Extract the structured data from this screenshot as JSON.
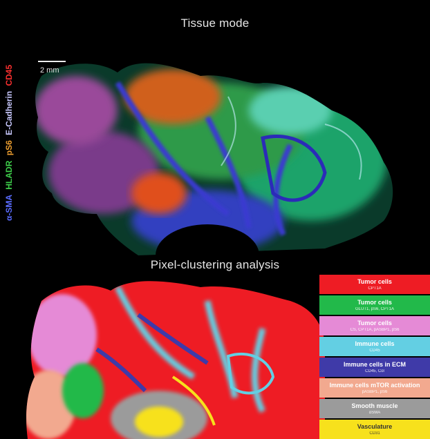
{
  "titles": {
    "top": "Tissue mode",
    "bottom": "Pixel-clustering analysis"
  },
  "scale_bar": {
    "label": "2 mm"
  },
  "marker_labels": [
    {
      "text": "α-SMA",
      "color": "#5a6cff"
    },
    {
      "text": "HLADR",
      "color": "#3ecf4a"
    },
    {
      "text": "pS6",
      "color": "#f0a030"
    },
    {
      "text": "E-Cadherin",
      "color": "#c9c9ff"
    },
    {
      "text": "CD45",
      "color": "#ff3030"
    }
  ],
  "legend": [
    {
      "name": "Tumor cells",
      "markers": "CPT1A",
      "color": "#ee1c24",
      "text_color": "#ffffff"
    },
    {
      "name": "Tumor cells",
      "markers": "GLUT1, pS6, CPT1A",
      "color": "#22b94a",
      "text_color": "#ffffff"
    },
    {
      "name": "Tumor cells",
      "markers": "CS, CPT1A, pASBP1, pS6",
      "color": "#e58ad6",
      "text_color": "#ffffff"
    },
    {
      "name": "Immune cells",
      "markers": "CD45",
      "color": "#63cfe3",
      "text_color": "#ffffff"
    },
    {
      "name": "Immune cells in ECM",
      "markers": "CD45, Col",
      "color": "#3f3aa8",
      "text_color": "#ffffff"
    },
    {
      "name": "Immune cells mTOR activation",
      "markers": "pASBP1, pS6",
      "color": "#f2a98f",
      "text_color": "#ffffff"
    },
    {
      "name": "Smooth muscle",
      "markers": "αSMA",
      "color": "#9b9b9b",
      "text_color": "#ffffff"
    },
    {
      "name": "Vasculature",
      "markers": "CD31",
      "color": "#f7e11c",
      "text_color": "#333333"
    }
  ]
}
